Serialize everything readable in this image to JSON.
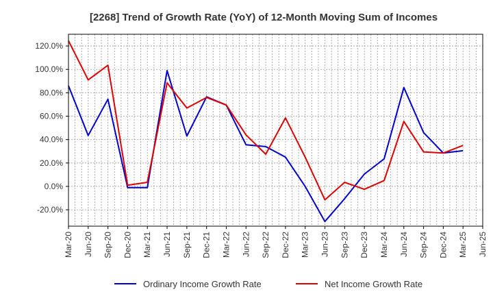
{
  "chart_data": {
    "type": "line",
    "title": "[2268]  Trend of Growth Rate (YoY) of 12-Month Moving Sum of Incomes",
    "xlabel": "",
    "ylabel": "",
    "ylim": [
      -34,
      130
    ],
    "y_ticks": [
      -20,
      0,
      20,
      40,
      60,
      80,
      100,
      120
    ],
    "y_tick_labels": [
      "-20.0%",
      "0.0%",
      "20.0%",
      "40.0%",
      "60.0%",
      "80.0%",
      "100.0%",
      "120.0%"
    ],
    "x_tick_labels": [
      "Mar-20",
      "Jun-20",
      "Sep-20",
      "Dec-20",
      "Mar-21",
      "Jun-21",
      "Sep-21",
      "Dec-21",
      "Mar-22",
      "Jun-22",
      "Sep-22",
      "Dec-22",
      "Mar-23",
      "Jun-23",
      "Sep-23",
      "Dec-23",
      "Mar-24",
      "Jun-24",
      "Sep-24",
      "Dec-24",
      "Mar-25",
      "Jun-25"
    ],
    "x": [
      "Mar-20",
      "Jun-20",
      "Sep-20",
      "Dec-20",
      "Mar-21",
      "Jun-21",
      "Sep-21",
      "Dec-21",
      "Mar-22",
      "Jun-22",
      "Sep-22",
      "Dec-22",
      "Mar-23",
      "Jun-23",
      "Sep-23",
      "Dec-23",
      "Mar-24",
      "Jun-24",
      "Sep-24",
      "Dec-24",
      "Mar-25"
    ],
    "grid": true,
    "legend_position": "bottom",
    "series": [
      {
        "name": "Ordinary Income Growth Rate",
        "color": "#0000cc",
        "values": [
          86,
          43.5,
          74.5,
          -1,
          -1,
          99,
          43,
          76.5,
          69.5,
          35.5,
          34,
          25,
          0,
          -30,
          -10.5,
          10.5,
          23.5,
          84.5,
          46,
          28.5,
          30.5
        ]
      },
      {
        "name": "Net Income Growth Rate",
        "color": "#dd0000",
        "values": [
          124.5,
          91,
          103.5,
          1,
          3.5,
          88.5,
          67,
          76,
          69.5,
          44,
          27.5,
          58.5,
          25,
          -11.5,
          3.5,
          -2.5,
          5,
          55.5,
          29.5,
          28.5,
          35
        ]
      }
    ]
  }
}
